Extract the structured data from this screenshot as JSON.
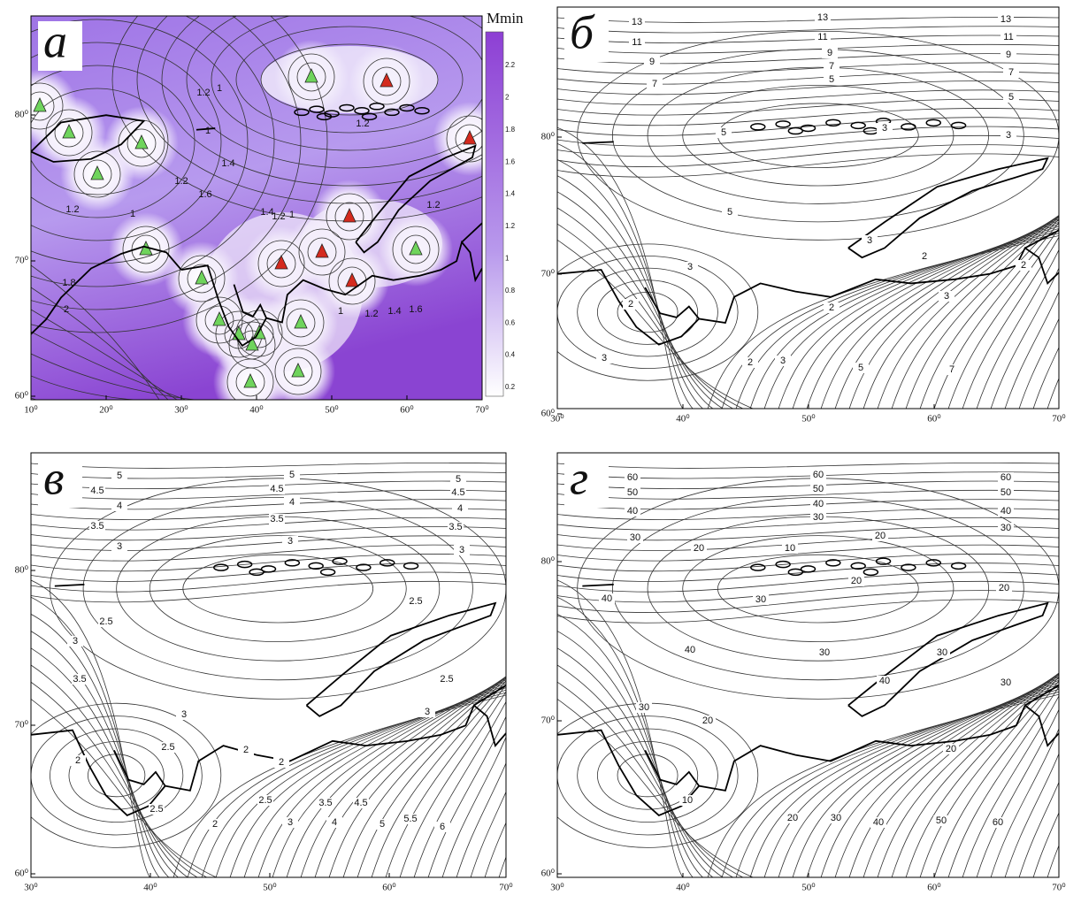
{
  "panels": [
    {
      "letter": "а",
      "x_tick_labels": [
        "10⁰",
        "20⁰",
        "30⁰",
        "40⁰",
        "50⁰",
        "60⁰",
        "70⁰"
      ],
      "y_tick_labels": [
        "80⁰",
        "70⁰",
        "60⁰"
      ],
      "colorbar": {
        "title": "Mmin",
        "tick_labels": [
          "2.2",
          "2",
          "1.8",
          "1.6",
          "1.4",
          "1.2",
          "1",
          "0.8",
          "0.6",
          "0.4",
          "0.2"
        ]
      },
      "contour_labels": [
        "1.2",
        "1",
        "1.2",
        "1",
        "1.4",
        "1.2",
        "1.6",
        "1",
        "1.2",
        "1.4",
        "1.2",
        "1",
        "1.2",
        "1.8",
        "2",
        "1",
        "1.2",
        "1.4",
        "1.6"
      ]
    },
    {
      "letter": "б",
      "x_tick_labels": [
        "30⁰",
        "40⁰",
        "50⁰",
        "60⁰",
        "70⁰"
      ],
      "y_tick_labels": [
        "80⁰",
        "70⁰",
        "60⁰"
      ],
      "contour_labels": [
        "13",
        "11",
        "9",
        "7",
        "13",
        "11",
        "9",
        "7",
        "5",
        "13",
        "11",
        "9",
        "7",
        "5",
        "5",
        "3",
        "3",
        "5",
        "3",
        "3",
        "2",
        "2",
        "3",
        "2",
        "2",
        "3",
        "2",
        "3",
        "5",
        "7"
      ]
    },
    {
      "letter": "в",
      "x_tick_labels": [
        "30⁰",
        "40⁰",
        "50⁰",
        "60⁰",
        "70⁰"
      ],
      "y_tick_labels": [
        "80⁰",
        "70⁰",
        "60⁰"
      ],
      "contour_labels": [
        "5",
        "4.5",
        "4",
        "3.5",
        "3",
        "5",
        "4.5",
        "4",
        "3.5",
        "3",
        "5",
        "4.5",
        "4",
        "3.5",
        "3",
        "2.5",
        "2.5",
        "3",
        "3.5",
        "3",
        "2.5",
        "2.5",
        "3",
        "2",
        "2",
        "2",
        "2.5",
        "3",
        "3.5",
        "4",
        "4.5",
        "5",
        "5.5",
        "6",
        "2",
        "2.5"
      ]
    },
    {
      "letter": "г",
      "x_tick_labels": [
        "30⁰",
        "40⁰",
        "50⁰",
        "60⁰",
        "70⁰"
      ],
      "y_tick_labels": [
        "80⁰",
        "70⁰",
        "60⁰"
      ],
      "contour_labels": [
        "60",
        "50",
        "40",
        "30",
        "60",
        "50",
        "40",
        "30",
        "60",
        "50",
        "40",
        "30",
        "20",
        "10",
        "20",
        "20",
        "20",
        "40",
        "30",
        "40",
        "30",
        "30",
        "40",
        "30",
        "30",
        "20",
        "20",
        "10",
        "20",
        "30",
        "40",
        "50",
        "60"
      ]
    }
  ]
}
